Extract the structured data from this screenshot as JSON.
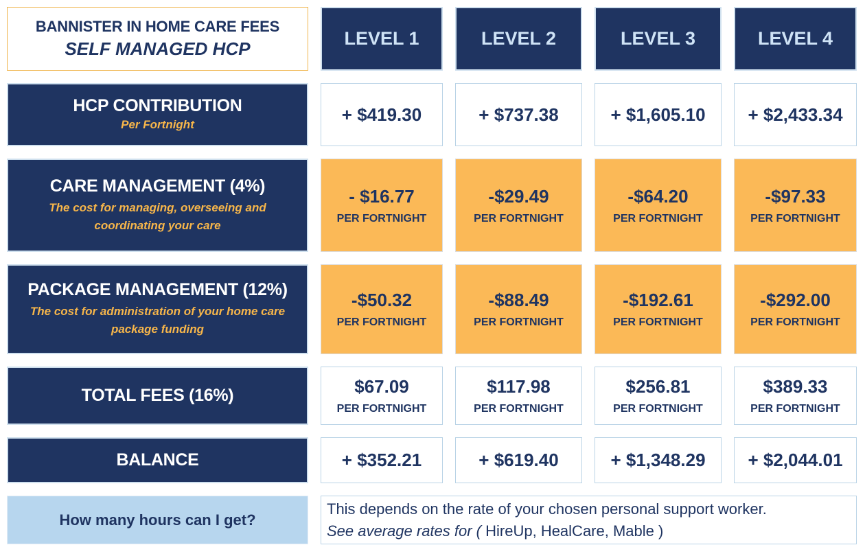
{
  "title": {
    "line1": "BANNISTER IN HOME CARE FEES",
    "line2": "SELF MANAGED HCP"
  },
  "levels": [
    "LEVEL 1",
    "LEVEL 2",
    "LEVEL 3",
    "LEVEL 4"
  ],
  "rows": [
    {
      "label": "HCP CONTRIBUTION",
      "sub": "Per Fortnight",
      "values": [
        "+ $419.30",
        "+ $737.38",
        "+ $1,605.10",
        "+ $2,433.34"
      ]
    },
    {
      "label": "CARE MANAGEMENT (4%)",
      "sub_lines": [
        "The cost for managing, overseeing and",
        "coordinating your care"
      ],
      "values": [
        "- $16.77",
        "-$29.49",
        "-$64.20",
        "-$97.33"
      ],
      "per": "PER FORTNIGHT"
    },
    {
      "label": "PACKAGE MANAGEMENT (12%)",
      "sub_lines": [
        "The cost for administration of your home care",
        "package funding"
      ],
      "values": [
        "-$50.32",
        "-$88.49",
        "-$192.61",
        "-$292.00"
      ],
      "per": "PER FORTNIGHT"
    },
    {
      "label": "TOTAL FEES (16%)",
      "values": [
        "$67.09",
        "$117.98",
        "$256.81",
        "$389.33"
      ],
      "per": "PER FORTNIGHT"
    },
    {
      "label": "BALANCE",
      "values": [
        "+ $352.21",
        "+ $619.40",
        "+ $1,348.29",
        "+ $2,044.01"
      ]
    }
  ],
  "question": "How many hours can I get?",
  "answer": {
    "line1": "This depends on the rate of your chosen personal support worker.",
    "line2_italic": "See average rates for (",
    "line2_rest": " HireUp, HealCare, Mable )"
  },
  "colors": {
    "navy": "#1f3461",
    "orange": "#fbb957",
    "light_blue": "#b7d6ee",
    "accent_text": "#f7b64a"
  }
}
